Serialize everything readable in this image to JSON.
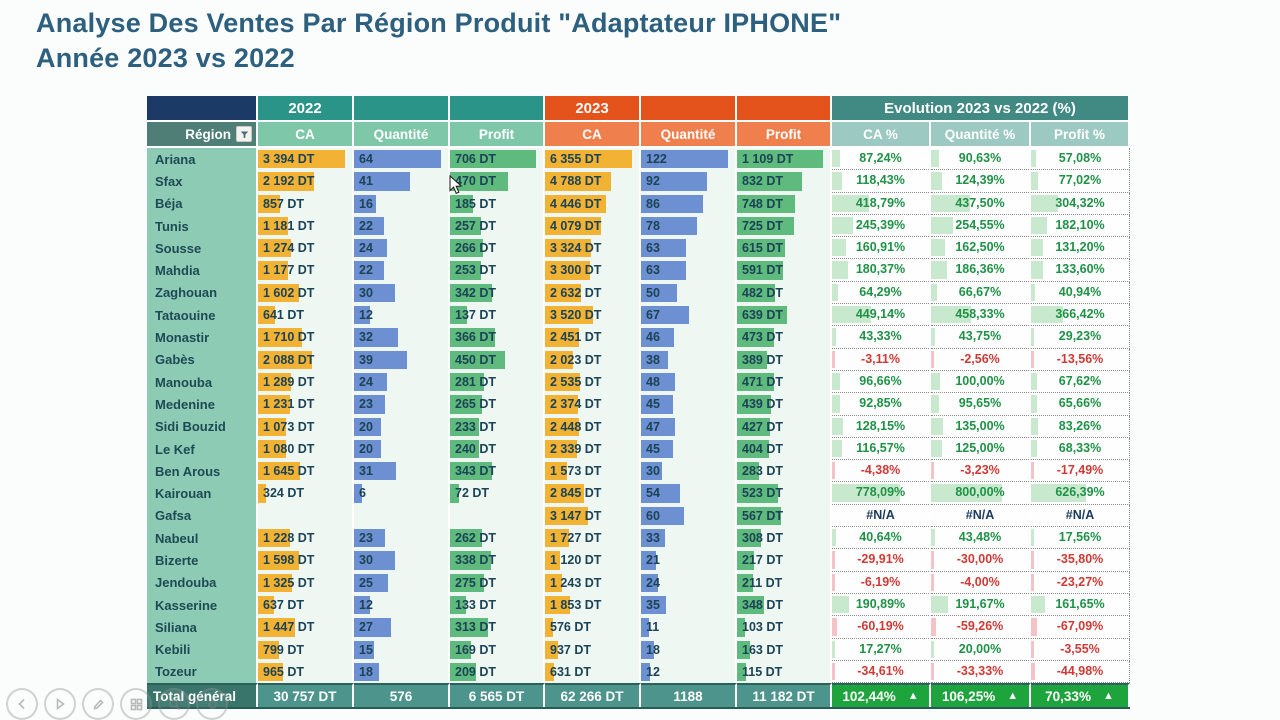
{
  "title": {
    "line1": "Analyse Des Ventes Par Région Produit \"Adaptateur IPHONE\"",
    "line2": "Année 2023 vs 2022"
  },
  "table": {
    "year2022_label": "2022",
    "year2023_label": "2023",
    "evolution_label": "Evolution 2023 vs 2022 (%)",
    "region_header": "Région",
    "sub_2022": [
      "CA",
      "Quantité",
      "Profit"
    ],
    "sub_2023": [
      "CA",
      "Quantité",
      "Profit"
    ],
    "sub_evo": [
      "CA %",
      "Quantité %",
      "Profit %"
    ],
    "unit": "DT",
    "column_keys": [
      "ca-2022",
      "qty-2022",
      "profit-2022",
      "ca-2023",
      "qty-2023",
      "profit-2023",
      "ca-pct",
      "qty-pct",
      "profit-pct"
    ],
    "maxes": [
      3394,
      64,
      706,
      6355,
      122,
      1109
    ],
    "evo_max": 800,
    "rows": [
      {
        "region": "Ariana",
        "values": [
          "3 394 DT",
          "64",
          "706 DT",
          "6 355 DT",
          "122",
          "1 109 DT"
        ],
        "nums": [
          3394,
          64,
          706,
          6355,
          122,
          1109
        ],
        "evo": [
          "87,24%",
          "90,63%",
          "57,08%"
        ],
        "evo_nums": [
          87.24,
          90.63,
          57.08
        ]
      },
      {
        "region": "Sfax",
        "values": [
          "2 192 DT",
          "41",
          "470 DT",
          "4 788 DT",
          "92",
          "832 DT"
        ],
        "nums": [
          2192,
          41,
          470,
          4788,
          92,
          832
        ],
        "evo": [
          "118,43%",
          "124,39%",
          "77,02%"
        ],
        "evo_nums": [
          118.43,
          124.39,
          77.02
        ]
      },
      {
        "region": "Béja",
        "values": [
          "857 DT",
          "16",
          "185 DT",
          "4 446 DT",
          "86",
          "748 DT"
        ],
        "nums": [
          857,
          16,
          185,
          4446,
          86,
          748
        ],
        "evo": [
          "418,79%",
          "437,50%",
          "304,32%"
        ],
        "evo_nums": [
          418.79,
          437.5,
          304.32
        ]
      },
      {
        "region": "Tunis",
        "values": [
          "1 181 DT",
          "22",
          "257 DT",
          "4 079 DT",
          "78",
          "725 DT"
        ],
        "nums": [
          1181,
          22,
          257,
          4079,
          78,
          725
        ],
        "evo": [
          "245,39%",
          "254,55%",
          "182,10%"
        ],
        "evo_nums": [
          245.39,
          254.55,
          182.1
        ]
      },
      {
        "region": "Sousse",
        "values": [
          "1 274 DT",
          "24",
          "266 DT",
          "3 324 DT",
          "63",
          "615 DT"
        ],
        "nums": [
          1274,
          24,
          266,
          3324,
          63,
          615
        ],
        "evo": [
          "160,91%",
          "162,50%",
          "131,20%"
        ],
        "evo_nums": [
          160.91,
          162.5,
          131.2
        ]
      },
      {
        "region": "Mahdia",
        "values": [
          "1 177 DT",
          "22",
          "253 DT",
          "3 300 DT",
          "63",
          "591 DT"
        ],
        "nums": [
          1177,
          22,
          253,
          3300,
          63,
          591
        ],
        "evo": [
          "180,37%",
          "186,36%",
          "133,60%"
        ],
        "evo_nums": [
          180.37,
          186.36,
          133.6
        ]
      },
      {
        "region": "Zaghouan",
        "values": [
          "1 602 DT",
          "30",
          "342 DT",
          "2 632 DT",
          "50",
          "482 DT"
        ],
        "nums": [
          1602,
          30,
          342,
          2632,
          50,
          482
        ],
        "evo": [
          "64,29%",
          "66,67%",
          "40,94%"
        ],
        "evo_nums": [
          64.29,
          66.67,
          40.94
        ]
      },
      {
        "region": "Tataouine",
        "values": [
          "641 DT",
          "12",
          "137 DT",
          "3 520 DT",
          "67",
          "639 DT"
        ],
        "nums": [
          641,
          12,
          137,
          3520,
          67,
          639
        ],
        "evo": [
          "449,14%",
          "458,33%",
          "366,42%"
        ],
        "evo_nums": [
          449.14,
          458.33,
          366.42
        ]
      },
      {
        "region": "Monastir",
        "values": [
          "1 710 DT",
          "32",
          "366 DT",
          "2 451 DT",
          "46",
          "473 DT"
        ],
        "nums": [
          1710,
          32,
          366,
          2451,
          46,
          473
        ],
        "evo": [
          "43,33%",
          "43,75%",
          "29,23%"
        ],
        "evo_nums": [
          43.33,
          43.75,
          29.23
        ]
      },
      {
        "region": "Gabès",
        "values": [
          "2 088 DT",
          "39",
          "450 DT",
          "2 023 DT",
          "38",
          "389 DT"
        ],
        "nums": [
          2088,
          39,
          450,
          2023,
          38,
          389
        ],
        "evo": [
          "-3,11%",
          "-2,56%",
          "-13,56%"
        ],
        "evo_nums": [
          -3.11,
          -2.56,
          -13.56
        ]
      },
      {
        "region": "Manouba",
        "values": [
          "1 289 DT",
          "24",
          "281 DT",
          "2 535 DT",
          "48",
          "471 DT"
        ],
        "nums": [
          1289,
          24,
          281,
          2535,
          48,
          471
        ],
        "evo": [
          "96,66%",
          "100,00%",
          "67,62%"
        ],
        "evo_nums": [
          96.66,
          100,
          67.62
        ]
      },
      {
        "region": "Medenine",
        "values": [
          "1 231 DT",
          "23",
          "265 DT",
          "2 374 DT",
          "45",
          "439 DT"
        ],
        "nums": [
          1231,
          23,
          265,
          2374,
          45,
          439
        ],
        "evo": [
          "92,85%",
          "95,65%",
          "65,66%"
        ],
        "evo_nums": [
          92.85,
          95.65,
          65.66
        ]
      },
      {
        "region": "Sidi Bouzid",
        "values": [
          "1 073 DT",
          "20",
          "233 DT",
          "2 448 DT",
          "47",
          "427 DT"
        ],
        "nums": [
          1073,
          20,
          233,
          2448,
          47,
          427
        ],
        "evo": [
          "128,15%",
          "135,00%",
          "83,26%"
        ],
        "evo_nums": [
          128.15,
          135,
          83.26
        ]
      },
      {
        "region": "Le Kef",
        "values": [
          "1 080 DT",
          "20",
          "240 DT",
          "2 339 DT",
          "45",
          "404 DT"
        ],
        "nums": [
          1080,
          20,
          240,
          2339,
          45,
          404
        ],
        "evo": [
          "116,57%",
          "125,00%",
          "68,33%"
        ],
        "evo_nums": [
          116.57,
          125,
          68.33
        ]
      },
      {
        "region": "Ben Arous",
        "values": [
          "1 645 DT",
          "31",
          "343 DT",
          "1 573 DT",
          "30",
          "283 DT"
        ],
        "nums": [
          1645,
          31,
          343,
          1573,
          30,
          283
        ],
        "evo": [
          "-4,38%",
          "-3,23%",
          "-17,49%"
        ],
        "evo_nums": [
          -4.38,
          -3.23,
          -17.49
        ]
      },
      {
        "region": "Kairouan",
        "values": [
          "324 DT",
          "6",
          "72 DT",
          "2 845 DT",
          "54",
          "523 DT"
        ],
        "nums": [
          324,
          6,
          72,
          2845,
          54,
          523
        ],
        "evo": [
          "778,09%",
          "800,00%",
          "626,39%"
        ],
        "evo_nums": [
          778.09,
          800,
          626.39
        ]
      },
      {
        "region": "Gafsa",
        "values": [
          "",
          "",
          "",
          "3 147 DT",
          "60",
          "567 DT"
        ],
        "nums": [
          null,
          null,
          null,
          3147,
          60,
          567
        ],
        "evo": [
          "#N/A",
          "#N/A",
          "#N/A"
        ],
        "evo_nums": [
          null,
          null,
          null
        ]
      },
      {
        "region": "Nabeul",
        "values": [
          "1 228 DT",
          "23",
          "262 DT",
          "1 727 DT",
          "33",
          "308 DT"
        ],
        "nums": [
          1228,
          23,
          262,
          1727,
          33,
          308
        ],
        "evo": [
          "40,64%",
          "43,48%",
          "17,56%"
        ],
        "evo_nums": [
          40.64,
          43.48,
          17.56
        ]
      },
      {
        "region": "Bizerte",
        "values": [
          "1 598 DT",
          "30",
          "338 DT",
          "1 120 DT",
          "21",
          "217 DT"
        ],
        "nums": [
          1598,
          30,
          338,
          1120,
          21,
          217
        ],
        "evo": [
          "-29,91%",
          "-30,00%",
          "-35,80%"
        ],
        "evo_nums": [
          -29.91,
          -30,
          -35.8
        ]
      },
      {
        "region": "Jendouba",
        "values": [
          "1 325 DT",
          "25",
          "275 DT",
          "1 243 DT",
          "24",
          "211 DT"
        ],
        "nums": [
          1325,
          25,
          275,
          1243,
          24,
          211
        ],
        "evo": [
          "-6,19%",
          "-4,00%",
          "-23,27%"
        ],
        "evo_nums": [
          -6.19,
          -4,
          -23.27
        ]
      },
      {
        "region": "Kasserine",
        "values": [
          "637 DT",
          "12",
          "133 DT",
          "1 853 DT",
          "35",
          "348 DT"
        ],
        "nums": [
          637,
          12,
          133,
          1853,
          35,
          348
        ],
        "evo": [
          "190,89%",
          "191,67%",
          "161,65%"
        ],
        "evo_nums": [
          190.89,
          191.67,
          161.65
        ]
      },
      {
        "region": "Siliana",
        "values": [
          "1 447 DT",
          "27",
          "313 DT",
          "576 DT",
          "11",
          "103 DT"
        ],
        "nums": [
          1447,
          27,
          313,
          576,
          11,
          103
        ],
        "evo": [
          "-60,19%",
          "-59,26%",
          "-67,09%"
        ],
        "evo_nums": [
          -60.19,
          -59.26,
          -67.09
        ]
      },
      {
        "region": "Kebili",
        "values": [
          "799 DT",
          "15",
          "169 DT",
          "937 DT",
          "18",
          "163 DT"
        ],
        "nums": [
          799,
          15,
          169,
          937,
          18,
          163
        ],
        "evo": [
          "17,27%",
          "20,00%",
          "-3,55%"
        ],
        "evo_nums": [
          17.27,
          20,
          -3.55
        ]
      },
      {
        "region": "Tozeur",
        "values": [
          "965 DT",
          "18",
          "209 DT",
          "631 DT",
          "12",
          "115 DT"
        ],
        "nums": [
          965,
          18,
          209,
          631,
          12,
          115
        ],
        "evo": [
          "-34,61%",
          "-33,33%",
          "-44,98%"
        ],
        "evo_nums": [
          -34.61,
          -33.33,
          -44.98
        ]
      }
    ],
    "total": {
      "label": "Total général",
      "values": [
        "30 757 DT",
        "576",
        "6 565 DT",
        "62 266 DT",
        "1188",
        "11 182 DT"
      ],
      "evo": [
        "102,44%",
        "106,25%",
        "70,33%"
      ],
      "arrow": "▲"
    }
  },
  "player_controls": [
    {
      "name": "back"
    },
    {
      "name": "play"
    },
    {
      "name": "pencil"
    },
    {
      "name": "grid"
    },
    {
      "name": "magnifier"
    },
    {
      "name": "circle"
    }
  ],
  "colors": {
    "titleColor": "#2d5f7f",
    "navy": "#1c3a66",
    "banner2022": "#2a9488",
    "banner2023": "#e4531b",
    "regionHeader": "#4f7e77",
    "sub2022": "#7fc7a9",
    "sub2023": "#ef7f4d",
    "evoBanner": "#418983",
    "evoSub": "#9ccac3",
    "regionCell": "#8ecbb4",
    "dataBg": "#eef7f1",
    "barCA": "#f2b233",
    "barQty": "#6c90d1",
    "barProfit": "#5eba7d",
    "textData": "#1c4356",
    "posGreen": "#1f9246",
    "negRed": "#cf3a36",
    "evoBarPos": "#c9e9cf",
    "evoBarNeg": "#f5c2c7",
    "totalLabelBg": "#39756b",
    "totalBg": "#4c948c",
    "totalEvoBg": "#1ea43c"
  }
}
